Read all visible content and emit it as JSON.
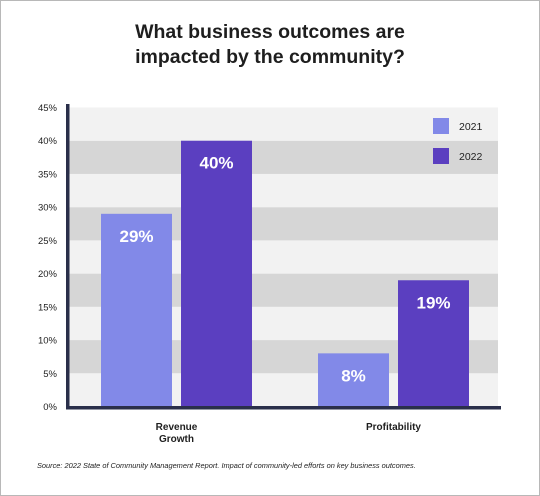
{
  "chart_data": {
    "type": "bar",
    "title_lines": [
      "What business outcomes are",
      "impacted by the community?"
    ],
    "categories": [
      [
        "Revenue",
        "Growth"
      ],
      [
        "Profitability"
      ]
    ],
    "series": [
      {
        "name": "2021",
        "values": [
          29,
          8
        ],
        "labels": [
          "29%",
          "8%"
        ],
        "color": "#8289e8"
      },
      {
        "name": "2022",
        "values": [
          40,
          19
        ],
        "labels": [
          "40%",
          "19%"
        ],
        "color": "#5b3fc0"
      }
    ],
    "ylim": [
      0,
      45
    ],
    "yticks": [
      0,
      5,
      10,
      15,
      20,
      25,
      30,
      35,
      40,
      45
    ],
    "ytick_labels": [
      "0%",
      "5%",
      "10%",
      "15%",
      "20%",
      "25%",
      "30%",
      "35%",
      "40%",
      "45%"
    ],
    "grid": "alternating-bands",
    "legend_position": "top-right",
    "source": "Source: 2022 State of Community Management Report. Impact of community-led efforts on key business outcomes."
  },
  "colors": {
    "band_dark": "#d6d6d6",
    "band_light": "#f2f2f2",
    "axis": "#2a2f4a",
    "text": "#1e1e1e",
    "bar_label": "#ffffff"
  }
}
